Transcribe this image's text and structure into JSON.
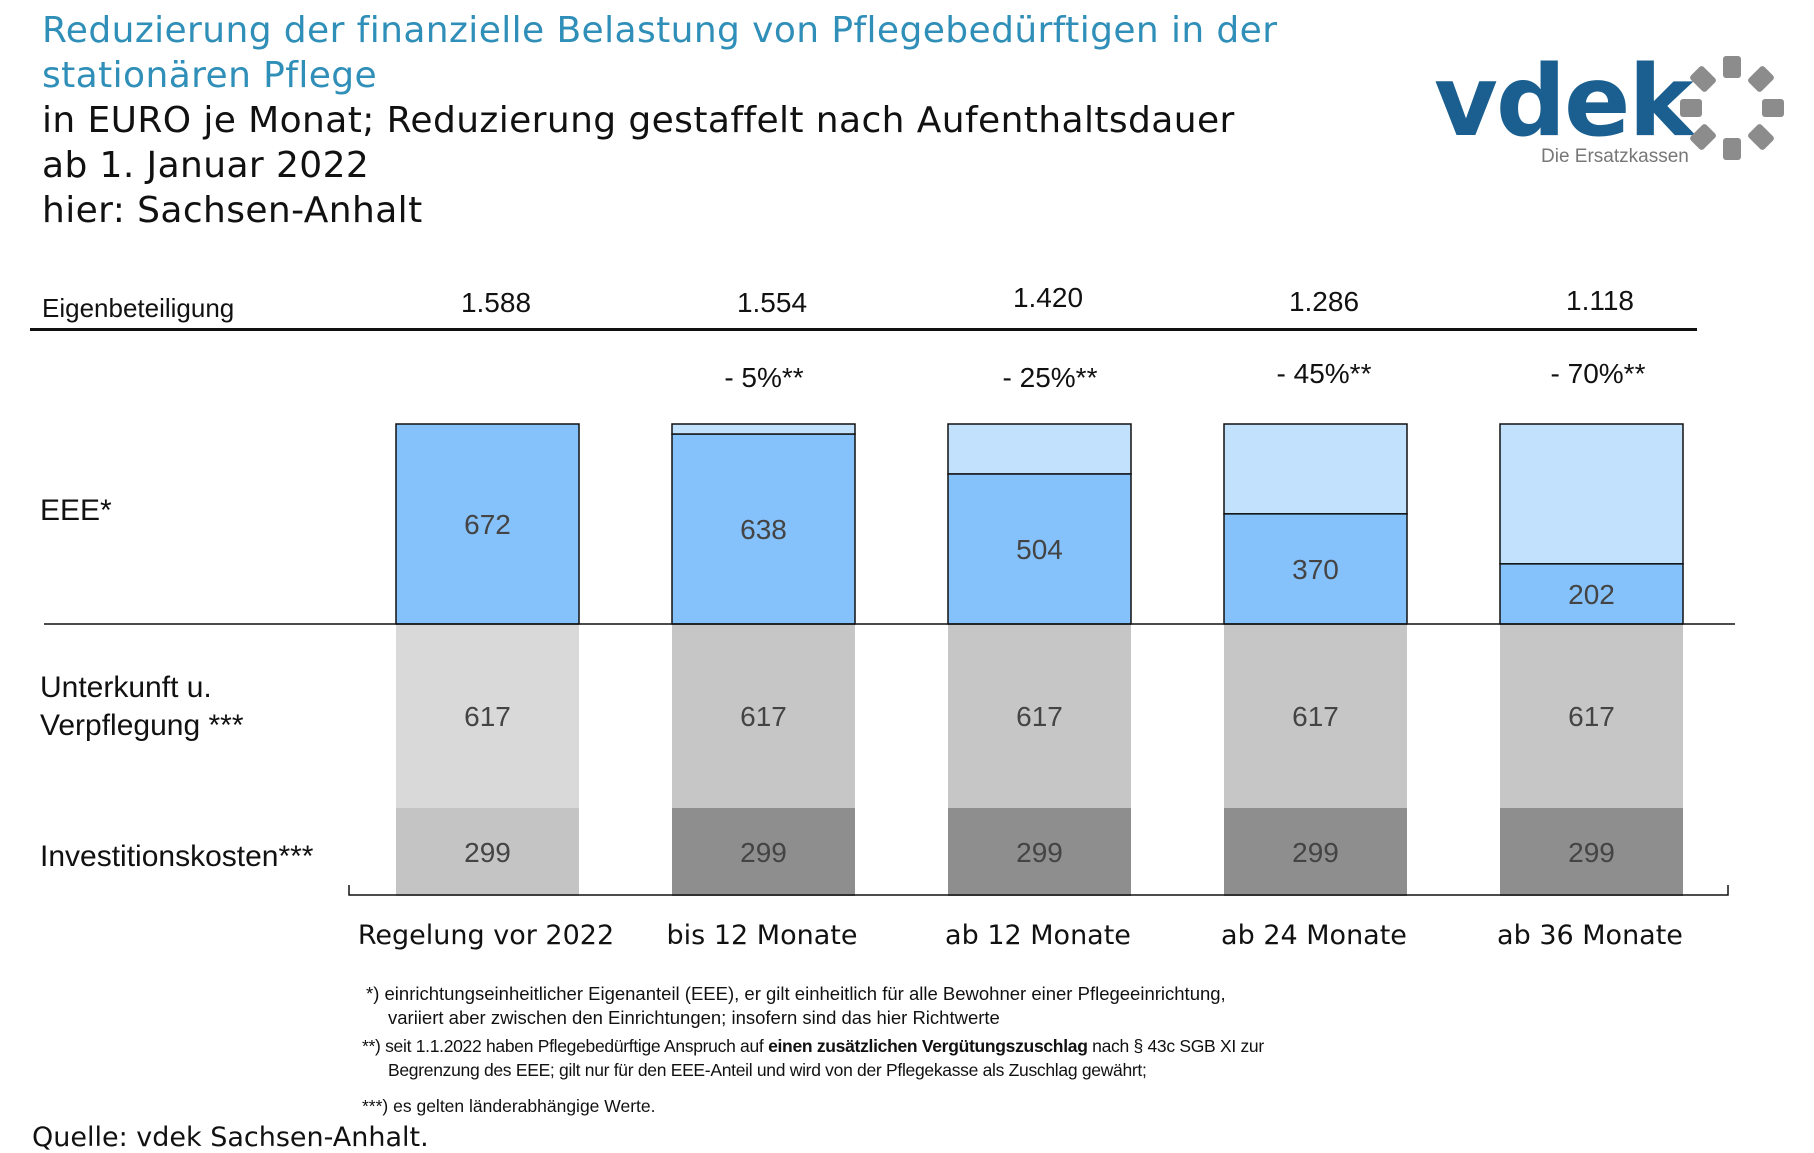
{
  "title": {
    "line1": "Reduzierung der finanzielle Belastung von Pflegebedürftigen in der",
    "line2": "stationären Pflege",
    "line3": "in EURO je Monat; Reduzierung gestaffelt nach Aufenthaltsdauer",
    "line4": "ab 1. Januar 2022",
    "line5": "hier: Sachsen-Anhalt"
  },
  "logo": {
    "text": "vdek",
    "subtitle": "Die Ersatzkassen",
    "icon": "ring-of-segments-icon"
  },
  "row_labels": {
    "eigen": "Eigenbeteiligung",
    "eee": "EEE*",
    "unterkunft_1": "Unterkunft u.",
    "unterkunft_2": "Verpflegung ***",
    "invest": "Investitionskosten***"
  },
  "eigenbeteiligung": [
    "1.588",
    "1.554",
    "1.420",
    "1.286",
    "1.118"
  ],
  "reductions": [
    "",
    "- 5%**",
    "- 25%**",
    "- 45%**",
    "- 70%**"
  ],
  "categories": [
    "Regelung vor 2022",
    "bis 12 Monate",
    "ab 12 Monate",
    "ab 24 Monate",
    "ab 36 Monate"
  ],
  "colors": {
    "eee_blue": "#85c1fb",
    "eee_reduction": "#c2e1fd",
    "unterkunft_first": "#d9d9d9",
    "unterkunft": "#c6c6c6",
    "invest_first": "#c4c4c4",
    "invest": "#8e8e8e"
  },
  "chart_data": {
    "type": "bar",
    "stacked": true,
    "categories": [
      "Regelung vor 2022",
      "bis 12 Monate",
      "ab 12 Monate",
      "ab 24 Monate",
      "ab 36 Monate"
    ],
    "series": [
      {
        "name": "Investitionskosten***",
        "values": [
          299,
          299,
          299,
          299,
          299
        ]
      },
      {
        "name": "Unterkunft u. Verpflegung ***",
        "values": [
          617,
          617,
          617,
          617,
          617
        ]
      },
      {
        "name": "EEE*",
        "values": [
          672,
          638,
          504,
          370,
          202
        ]
      }
    ],
    "eee_reduction_values": [
      0,
      34,
      168,
      302,
      470
    ],
    "totals_eigenbeteiligung": [
      1588,
      1554,
      1420,
      1286,
      1118
    ],
    "reduction_percent": [
      0,
      5,
      25,
      45,
      70
    ]
  },
  "footnotes": {
    "f1_line1": "*) einrichtungseinheitlicher Eigenanteil (EEE), er gilt einheitlich für alle Bewohner einer Pflegeeinrichtung,",
    "f1_line2": "variiert aber zwischen den Einrichtungen; insofern sind das hier Richtwerte",
    "f2_pre": "**) seit 1.1.2022 haben Pflegebedürftige Anspruch auf ",
    "f2_bold": "einen zusätzlichen Vergütungszuschlag",
    "f2_post": " nach § 43c SGB XI zur",
    "f2_line2": "Begrenzung des EEE; gilt nur für den EEE-Anteil und wird von der Pflegekasse als Zuschlag gewährt;",
    "f3": "***) es gelten länderabhängige Werte."
  },
  "source": "Quelle: vdek Sachsen-Anhalt."
}
